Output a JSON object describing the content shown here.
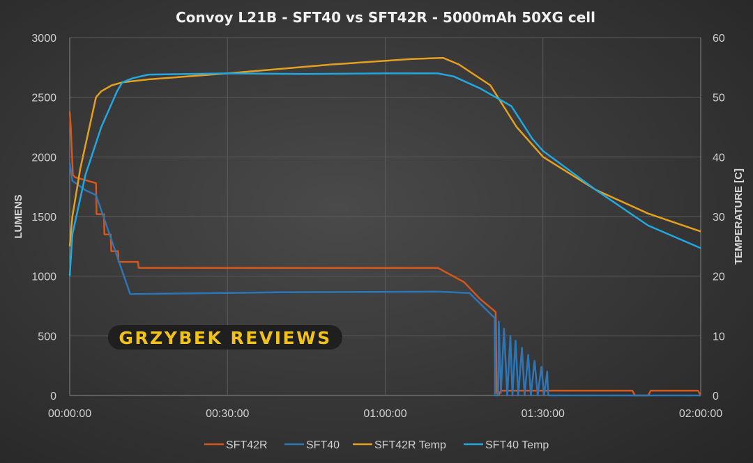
{
  "chart_data": {
    "type": "line",
    "title": "Convoy L21B - SFT40 vs SFT42R - 5000mAh 50XG cell",
    "xlabel": "",
    "ylabel": "LUMENS",
    "y2label": "TEMPERATURE [C]",
    "xlim_minutes": [
      0,
      120
    ],
    "ylim": [
      0,
      3000
    ],
    "y2lim": [
      0,
      60
    ],
    "x_ticks": [
      {
        "min": 0,
        "label": "00:00:00"
      },
      {
        "min": 30,
        "label": "00:30:00"
      },
      {
        "min": 60,
        "label": "01:00:00"
      },
      {
        "min": 90,
        "label": "01:30:00"
      },
      {
        "min": 120,
        "label": "02:00:00"
      }
    ],
    "y_ticks": [
      "0",
      "500",
      "1000",
      "1500",
      "2000",
      "2500",
      "3000"
    ],
    "y2_ticks": [
      "0",
      "10",
      "20",
      "30",
      "40",
      "50",
      "60"
    ],
    "grid": true,
    "legend_position": "bottom",
    "watermark": "GRZYBEK REVIEWS",
    "series": [
      {
        "name": "SFT42R",
        "axis": "left",
        "color": "#d4571c",
        "points": [
          [
            0,
            2380
          ],
          [
            0.2,
            2250
          ],
          [
            0.6,
            1850
          ],
          [
            1,
            1830
          ],
          [
            5,
            1780
          ],
          [
            5.1,
            1520
          ],
          [
            6.5,
            1520
          ],
          [
            6.6,
            1350
          ],
          [
            7.8,
            1350
          ],
          [
            7.9,
            1210
          ],
          [
            9.2,
            1210
          ],
          [
            9.3,
            1120
          ],
          [
            13,
            1120
          ],
          [
            13.1,
            1070
          ],
          [
            70,
            1070
          ],
          [
            75,
            950
          ],
          [
            78,
            810
          ],
          [
            81,
            700
          ],
          [
            81.2,
            30
          ],
          [
            81.5,
            0
          ],
          [
            82,
            40
          ],
          [
            107,
            40
          ],
          [
            107.5,
            0
          ],
          [
            110,
            0
          ],
          [
            110.5,
            40
          ],
          [
            119.5,
            40
          ],
          [
            120,
            0
          ]
        ]
      },
      {
        "name": "SFT40",
        "axis": "left",
        "color": "#2e75b6",
        "points": [
          [
            0,
            1950
          ],
          [
            0.5,
            1800
          ],
          [
            3,
            1720
          ],
          [
            5,
            1680
          ],
          [
            11.5,
            850
          ],
          [
            40,
            865
          ],
          [
            70,
            870
          ],
          [
            76,
            860
          ],
          [
            80.8,
            650
          ],
          [
            80.9,
            0
          ],
          [
            81.5,
            0
          ],
          [
            81.6,
            620
          ],
          [
            82,
            20
          ],
          [
            82.6,
            560
          ],
          [
            83.2,
            0
          ],
          [
            83.8,
            500
          ],
          [
            84.2,
            0
          ],
          [
            84.8,
            460
          ],
          [
            85.3,
            0
          ],
          [
            86,
            400
          ],
          [
            86.5,
            0
          ],
          [
            87.2,
            340
          ],
          [
            87.7,
            0
          ],
          [
            88.4,
            290
          ],
          [
            89,
            0
          ],
          [
            89.7,
            240
          ],
          [
            90.2,
            0
          ],
          [
            90.8,
            200
          ],
          [
            91,
            0
          ],
          [
            120,
            0
          ]
        ]
      },
      {
        "name": "SFT42R Temp",
        "axis": "right",
        "color": "#e6a020",
        "points": [
          [
            0,
            25
          ],
          [
            0.5,
            30
          ],
          [
            2,
            38
          ],
          [
            5,
            50
          ],
          [
            6,
            51
          ],
          [
            8,
            52
          ],
          [
            10,
            52.5
          ],
          [
            15,
            53
          ],
          [
            30,
            54
          ],
          [
            50,
            55.5
          ],
          [
            65,
            56.4
          ],
          [
            71,
            56.6
          ],
          [
            74,
            55.5
          ],
          [
            80,
            52
          ],
          [
            85,
            45
          ],
          [
            90,
            40
          ],
          [
            100,
            34.5
          ],
          [
            110,
            30.5
          ],
          [
            120,
            27.5
          ]
        ]
      },
      {
        "name": "SFT40 Temp",
        "axis": "right",
        "color": "#22a8e0",
        "points": [
          [
            0,
            20
          ],
          [
            0.5,
            27
          ],
          [
            3,
            37
          ],
          [
            6,
            45
          ],
          [
            9,
            51
          ],
          [
            10,
            52.5
          ],
          [
            12,
            53.2
          ],
          [
            15,
            53.8
          ],
          [
            30,
            54
          ],
          [
            45,
            53.9
          ],
          [
            60,
            54
          ],
          [
            70,
            54
          ],
          [
            73,
            53.5
          ],
          [
            78,
            51.5
          ],
          [
            84,
            48.5
          ],
          [
            88,
            43
          ],
          [
            90,
            41
          ],
          [
            100,
            34.5
          ],
          [
            110,
            28.5
          ],
          [
            120,
            24.7
          ]
        ]
      }
    ]
  }
}
